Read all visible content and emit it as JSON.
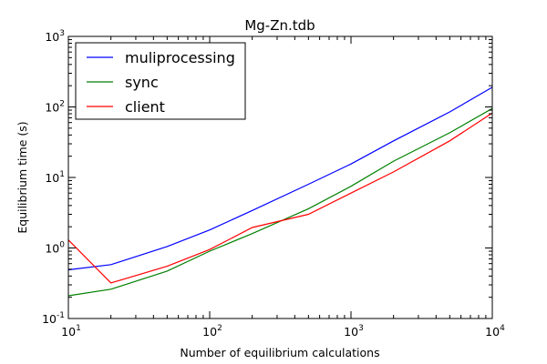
{
  "chart_data": {
    "type": "line",
    "title": "Mg-Zn.tdb",
    "xlabel": "Number of equilibrium calculations",
    "ylabel": "Equilibrium time (s)",
    "xscale": "log",
    "yscale": "log",
    "xlim": [
      10,
      10000
    ],
    "ylim": [
      0.1,
      1000
    ],
    "grid": false,
    "legend_position": "top-left",
    "x_ticks": [
      {
        "base": "10",
        "exp": "1",
        "value": 10
      },
      {
        "base": "10",
        "exp": "2",
        "value": 100
      },
      {
        "base": "10",
        "exp": "3",
        "value": 1000
      },
      {
        "base": "10",
        "exp": "4",
        "value": 10000
      }
    ],
    "y_ticks": [
      {
        "base": "10",
        "exp": "-1",
        "value": 0.1
      },
      {
        "base": "10",
        "exp": "0",
        "value": 1
      },
      {
        "base": "10",
        "exp": "1",
        "value": 10
      },
      {
        "base": "10",
        "exp": "2",
        "value": 100
      },
      {
        "base": "10",
        "exp": "3",
        "value": 1000
      }
    ],
    "x": [
      10,
      20,
      50,
      100,
      200,
      500,
      1000,
      2000,
      5000,
      10000
    ],
    "series": [
      {
        "name": "muliprocessing",
        "color": "#0000ff",
        "values": [
          0.49,
          0.58,
          1.05,
          1.8,
          3.4,
          8.0,
          15.5,
          33,
          85,
          190
        ]
      },
      {
        "name": "sync",
        "color": "#008000",
        "values": [
          0.21,
          0.26,
          0.47,
          0.9,
          1.6,
          3.6,
          7.5,
          17,
          43,
          95
        ]
      },
      {
        "name": "client",
        "color": "#ff0000",
        "values": [
          1.3,
          0.32,
          0.55,
          0.95,
          1.95,
          3.0,
          6.0,
          12,
          33,
          82
        ]
      }
    ]
  }
}
